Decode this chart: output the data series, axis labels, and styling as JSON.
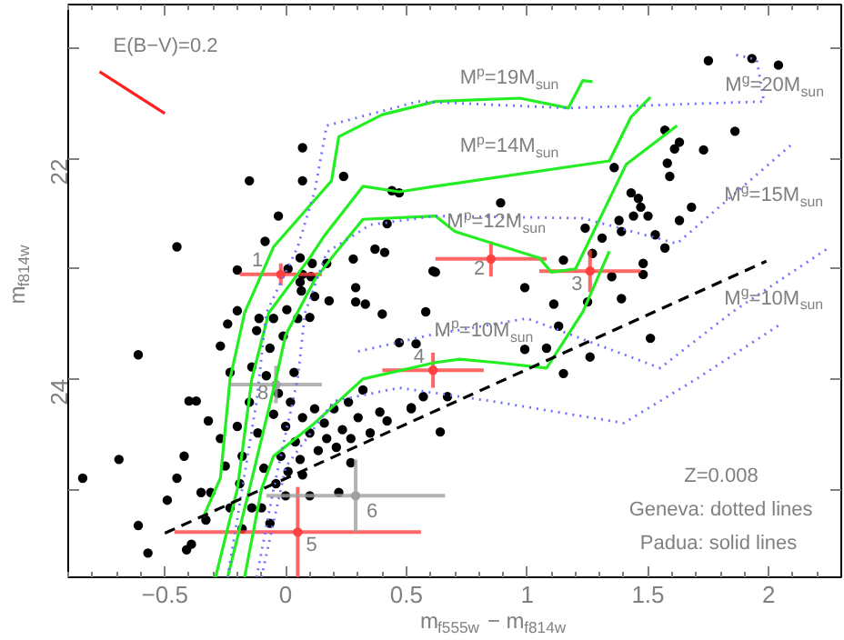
{
  "chart_data": {
    "type": "scatter",
    "xlabel": "m$_{f555w}$ − m$_{f814w}$",
    "ylabel": "m$_{f814w}$",
    "xlim": [
      -0.9,
      2.3
    ],
    "ylim": [
      25.8,
      20.6
    ],
    "xticks": [
      {
        "value": -0.5,
        "label": "−0.5"
      },
      0,
      0.5,
      1,
      1.5,
      2
    ],
    "yticks": [
      {
        "value": 21,
        "label": null
      },
      22,
      {
        "value": 23,
        "label": null
      },
      24,
      {
        "value": 25,
        "label": null
      }
    ],
    "grid": false,
    "series": [
      {
        "marker": "circle",
        "color": "#000000",
        "x": [
          0.07,
          -0.15,
          0.07,
          0.24,
          -0.45,
          -0.03,
          -0.085,
          0.44,
          0.47,
          0.42,
          0.37,
          0.41,
          0.28,
          0.06,
          0.11,
          0.17,
          -0.2,
          0.01,
          0.07,
          0.105,
          0.06,
          0.065,
          0.12,
          0.18,
          0.29,
          0.29,
          0.33,
          0.4,
          0.61,
          0.58,
          -0.2,
          -0.11,
          -0.05,
          0.05,
          0.1,
          0.005,
          -0.24,
          1.75,
          1.93,
          2.04,
          1.57,
          1.61,
          1.63,
          1.73,
          1.86,
          1.58,
          1.59,
          1.36,
          1.43,
          1.46,
          1.47,
          1.44,
          1.5,
          1.38,
          1.39,
          1.53,
          1.63,
          1.68,
          1.57,
          0.89,
          1.31,
          1.27,
          1.24,
          1.15,
          1.48,
          1.48,
          1.35,
          0.62,
          0.99,
          1.11,
          1.39,
          1.25,
          1.13,
          0.99,
          1.08,
          1.26,
          1.15,
          1.51,
          0.67,
          0.52,
          0.64,
          -0.61,
          -0.84,
          -0.69,
          -0.61,
          -0.57,
          -0.49,
          -0.45,
          -0.42,
          -0.4,
          -0.37,
          -0.35,
          -0.32,
          -0.31,
          -0.39,
          -0.41,
          -0.33,
          -0.27,
          -0.23,
          -0.27,
          -0.25,
          -0.23,
          -0.2,
          -0.19,
          -0.18,
          -0.15,
          -0.14,
          -0.12,
          -0.115,
          -0.1,
          -0.09,
          -0.08,
          -0.065,
          -0.05,
          -0.04,
          -0.03,
          -0.02,
          -0.01,
          0.0,
          0.01,
          0.02,
          0.035,
          0.04,
          0.06,
          0.07,
          0.1,
          0.12,
          0.135,
          0.16,
          0.17,
          0.2,
          0.21,
          0.235,
          0.26,
          0.27,
          0.3,
          0.32,
          0.35,
          0.39,
          0.42,
          0.47,
          0.54,
          0.52,
          0.57,
          0.1,
          -0.14,
          -0.18,
          -0.065,
          0.0,
          0.07,
          0.22,
          0.27
        ],
        "values": [
          21.9,
          22.2,
          22.2,
          22.16,
          22.8,
          22.52,
          22.75,
          22.29,
          22.31,
          22.59,
          22.82,
          22.85,
          22.91,
          22.9,
          22.95,
          22.95,
          23.01,
          23.0,
          23.05,
          23.07,
          23.12,
          23.2,
          23.25,
          23.29,
          23.17,
          23.3,
          23.32,
          23.41,
          23.02,
          23.39,
          23.38,
          23.45,
          23.45,
          23.45,
          23.44,
          23.37,
          23.5,
          21.11,
          21.09,
          21.15,
          21.74,
          21.91,
          21.85,
          21.92,
          21.75,
          22.04,
          22.16,
          22.08,
          22.31,
          22.36,
          22.44,
          22.52,
          22.52,
          22.56,
          22.66,
          22.69,
          22.56,
          22.44,
          22.81,
          22.4,
          22.72,
          22.86,
          22.63,
          22.92,
          22.95,
          23.05,
          23.07,
          23.03,
          23.17,
          23.32,
          23.27,
          23.3,
          23.52,
          23.73,
          23.72,
          23.8,
          23.95,
          23.63,
          24.16,
          24.26,
          24.48,
          23.78,
          24.9,
          24.73,
          25.33,
          25.58,
          25.1,
          24.9,
          24.7,
          24.2,
          24.2,
          25.03,
          24.38,
          25.03,
          25.5,
          25.55,
          25.28,
          23.7,
          23.94,
          24.54,
          24.79,
          25.17,
          24.43,
          24.95,
          24.7,
          24.21,
          23.89,
          23.56,
          24.49,
          25.17,
          24.81,
          23.97,
          23.72,
          24.32,
          24.95,
          24.13,
          24.7,
          23.61,
          24.43,
          24.84,
          24.21,
          23.94,
          24.57,
          24.73,
          24.35,
          24.49,
          24.27,
          24.65,
          24.4,
          24.54,
          24.27,
          24.62,
          24.46,
          24.21,
          24.54,
          24.35,
          24.1,
          24.49,
          24.3,
          24.38,
          23.67,
          23.68,
          24.27,
          24.16,
          25.06,
          25.17,
          25.36,
          25.31,
          25.06,
          24.87,
          25.03,
          24.76
        ]
      },
      {
        "marker": "circle",
        "color": "#ff4040",
        "x": [
          -0.02,
          0.85,
          1.26,
          0.61,
          0.05
        ],
        "values": [
          23.05,
          22.91,
          23.02,
          23.92,
          25.39
        ],
        "xerrors": [
          0.17,
          0.23,
          0.21,
          0.21,
          0.51
        ],
        "errors": [
          0.1,
          0.16,
          0.19,
          0.16,
          0.41
        ]
      },
      {
        "marker": "circle",
        "color": "#a0a0a0",
        "x": [
          0.29,
          -0.04
        ],
        "values": [
          25.06,
          24.05
        ],
        "xerrors": [
          0.37,
          0.19
        ],
        "errors": [
          0.33,
          0.17
        ]
      },
      {
        "type": "line",
        "color": "#22ee22",
        "line_style": "solid",
        "x": [
          -0.34,
          -0.27,
          -0.23,
          -0.17,
          -0.05,
          0.15,
          0.19,
          0.22,
          0.4,
          0.62,
          0.97,
          1.17,
          1.23,
          1.27
        ],
        "values": [
          25.25,
          24.9,
          24.0,
          23.4,
          22.8,
          22.3,
          22.2,
          21.8,
          21.6,
          21.48,
          21.45,
          21.54,
          21.29,
          21.3
        ]
      },
      {
        "type": "line",
        "color": "#22ee22",
        "line_style": "solid",
        "x": [
          -0.29,
          -0.2,
          -0.14,
          -0.07,
          0.1,
          0.16,
          0.32,
          0.47,
          0.62,
          1.34,
          1.43,
          1.51
        ],
        "values": [
          25.8,
          25.0,
          24.0,
          23.4,
          22.9,
          22.7,
          22.25,
          22.3,
          22.25,
          22.02,
          21.62,
          21.44
        ]
      },
      {
        "type": "line",
        "color": "#22ee22",
        "line_style": "solid",
        "x": [
          -0.24,
          -0.15,
          -0.04,
          0.0,
          0.12,
          0.19,
          0.32,
          0.62,
          0.7,
          1.05,
          1.1,
          1.2,
          1.41,
          1.62
        ],
        "values": [
          25.8,
          25.0,
          24.0,
          23.6,
          23.1,
          22.9,
          22.55,
          22.52,
          22.66,
          22.9,
          23.03,
          23.0,
          22.05,
          21.7
        ]
      },
      {
        "type": "line",
        "color": "#22ee22",
        "line_style": "solid",
        "x": [
          -0.17,
          -0.1,
          -0.05,
          0.12,
          0.32,
          0.62,
          0.72,
          0.87,
          1.08,
          1.23,
          1.34
        ],
        "values": [
          25.8,
          25.0,
          24.7,
          24.4,
          24.0,
          23.85,
          23.82,
          23.85,
          23.9,
          23.39,
          22.84
        ]
      },
      {
        "type": "line",
        "color": "#7070ff",
        "line_style": "dotted",
        "x": [
          -0.24,
          -0.18,
          -0.12,
          -0.08,
          0.05,
          0.12,
          0.17,
          0.55,
          1.17,
          1.98,
          1.95,
          1.85
        ],
        "values": [
          25.8,
          25.0,
          24.2,
          23.4,
          22.8,
          22.3,
          21.7,
          21.48,
          21.54,
          21.48,
          21.1,
          21.05
        ]
      },
      {
        "type": "line",
        "color": "#7070ff",
        "line_style": "dotted",
        "x": [
          -0.12,
          -0.05,
          0.0,
          0.05,
          0.08,
          0.17,
          0.35,
          0.62,
          1.23,
          1.62,
          2.1
        ],
        "values": [
          25.8,
          25.0,
          24.5,
          24.0,
          23.4,
          22.85,
          22.6,
          22.52,
          22.54,
          22.77,
          21.86
        ]
      },
      {
        "type": "line",
        "color": "#7070ff",
        "line_style": "dotted",
        "x": [
          -0.1,
          0.0,
          0.2,
          0.47,
          0.85,
          1.4,
          1.7,
          2.05
        ],
        "values": [
          25.8,
          24.8,
          24.2,
          24.08,
          24.2,
          24.4,
          24.0,
          23.5
        ]
      },
      {
        "type": "line",
        "color": "#7070ff",
        "line_style": "dotted",
        "x": [
          0.3,
          0.6,
          1.0,
          1.55,
          1.85,
          2.24
        ],
        "values": [
          23.75,
          23.6,
          23.45,
          23.9,
          23.39,
          22.82
        ]
      },
      {
        "type": "line",
        "color": "#ff2020",
        "line_style": "solid",
        "x": [
          -0.77,
          -0.5
        ],
        "values": [
          21.21,
          21.59
        ]
      },
      {
        "type": "line",
        "color": "#000000",
        "line_style": "dashed",
        "x": [
          -0.5,
          1.99
        ],
        "values": [
          25.4,
          22.93
        ]
      }
    ],
    "annotations": [
      "E(B−V)=0.2",
      "M$^{p}$=19M$_{sun}$",
      "M$^{p}$=14M$_{sun}$",
      "M$^{p}$=12M$_{sun}$",
      "M$^{p}$=10M$_{sun}$",
      "M$^{g}$=20M$_{sun}$",
      "M$^{g}$=15M$_{sun}$",
      "M$^{g}$=10M$_{sun}$",
      "1",
      "2",
      "3",
      "4",
      "5",
      "6",
      "8",
      "Z=0.008",
      "Geneva: dotted lines",
      "Padua: solid lines"
    ]
  }
}
